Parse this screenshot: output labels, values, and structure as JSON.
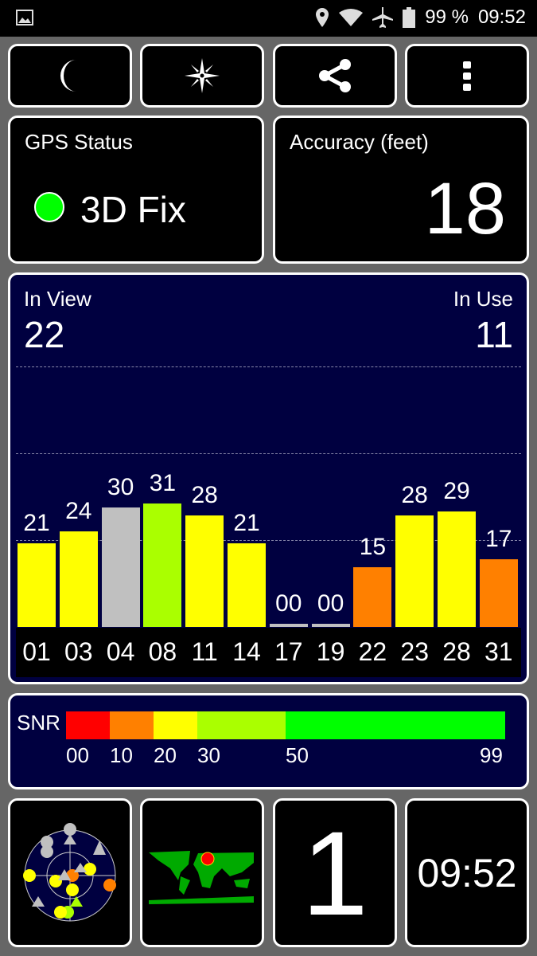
{
  "status_bar": {
    "battery": "99 %",
    "time": "09:52"
  },
  "gps_status": {
    "title": "GPS Status",
    "value": "3D Fix",
    "color": "#00ff00"
  },
  "accuracy": {
    "title": "Accuracy (feet)",
    "value": "18"
  },
  "satellites": {
    "in_view_label": "In View",
    "in_view": "22",
    "in_use_label": "In Use",
    "in_use": "11"
  },
  "chart_data": {
    "type": "bar",
    "categories": [
      "01",
      "03",
      "04",
      "08",
      "11",
      "14",
      "17",
      "19",
      "22",
      "23",
      "28",
      "31"
    ],
    "values": [
      21,
      24,
      30,
      31,
      28,
      21,
      0,
      0,
      15,
      28,
      29,
      17
    ],
    "value_labels": [
      "21",
      "24",
      "30",
      "31",
      "28",
      "21",
      "00",
      "00",
      "15",
      "28",
      "29",
      "17"
    ],
    "colors": [
      "#ffff00",
      "#ffff00",
      "#c0c0c0",
      "#aaff00",
      "#ffff00",
      "#ffff00",
      "#c0c0c0",
      "#c0c0c0",
      "#ff8000",
      "#ffff00",
      "#ffff00",
      "#ff8000"
    ]
  },
  "snr_legend": {
    "label": "SNR",
    "ticks": [
      "00",
      "10",
      "20",
      "30",
      "50",
      "99"
    ],
    "colors": [
      "#ff0000",
      "#ff8000",
      "#ffff00",
      "#aaff00",
      "#00ff00"
    ]
  },
  "bottom": {
    "count": "1",
    "time": "09:52"
  }
}
